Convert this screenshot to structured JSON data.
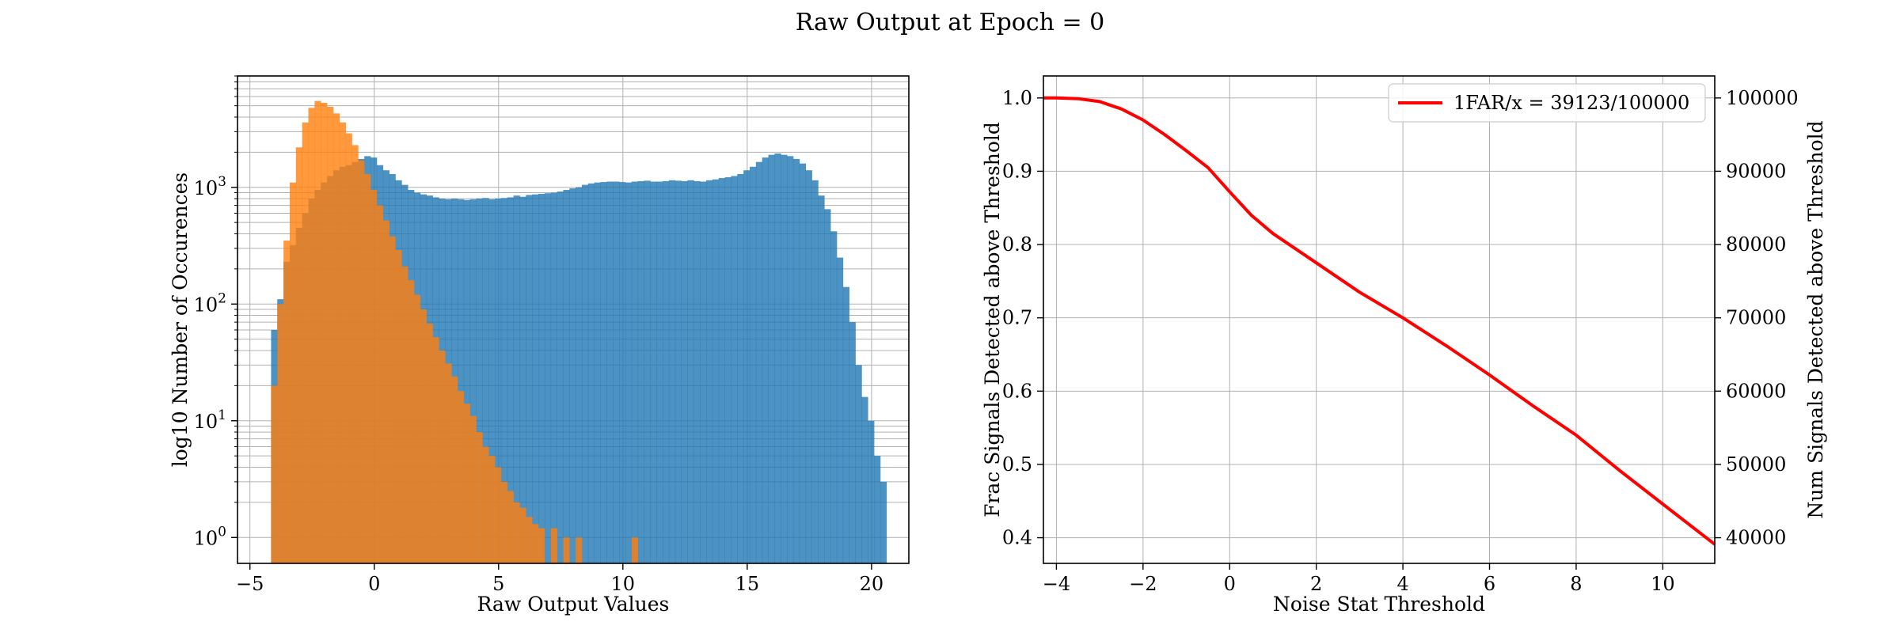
{
  "figure": {
    "suptitle": "Raw Output at Epoch = 0",
    "background": "#ffffff"
  },
  "chart_data": [
    {
      "type": "histogram",
      "xlabel": "Raw Output Values",
      "ylabel": "log10 Number of Occurences",
      "xlim": [
        -5.5,
        21.5
      ],
      "ylim": [
        0.6,
        9000
      ],
      "yscale": "log",
      "grid": true,
      "xticks": [
        -5,
        0,
        5,
        10,
        15,
        20
      ],
      "xtick_labels": [
        "−5",
        "0",
        "5",
        "10",
        "15",
        "20"
      ],
      "yticks": [
        {
          "value": 1,
          "base": "10",
          "exp": "0"
        },
        {
          "value": 10,
          "base": "10",
          "exp": "1"
        },
        {
          "value": 100,
          "base": "10",
          "exp": "2"
        },
        {
          "value": 1000,
          "base": "10",
          "exp": "3"
        }
      ],
      "series": [
        {
          "color": "#1f77b4",
          "opacity": 0.8,
          "bin_edges_start": -4.4,
          "bin_width": 0.25,
          "counts": [
            0.5,
            60,
            110,
            230,
            320,
            450,
            600,
            800,
            950,
            1100,
            1250,
            1400,
            1500,
            1550,
            1650,
            1750,
            1850,
            1800,
            1550,
            1400,
            1300,
            1150,
            1050,
            950,
            900,
            870,
            850,
            820,
            800,
            790,
            800,
            790,
            780,
            790,
            800,
            810,
            790,
            800,
            810,
            820,
            850,
            830,
            860,
            870,
            880,
            890,
            900,
            920,
            950,
            980,
            1000,
            1050,
            1080,
            1100,
            1110,
            1120,
            1120,
            1110,
            1100,
            1120,
            1130,
            1140,
            1120,
            1120,
            1130,
            1150,
            1140,
            1130,
            1150,
            1130,
            1120,
            1150,
            1170,
            1200,
            1220,
            1250,
            1300,
            1400,
            1500,
            1650,
            1800,
            1900,
            1950,
            1900,
            1850,
            1750,
            1600,
            1400,
            1150,
            850,
            650,
            420,
            250,
            140,
            70,
            30,
            16,
            10,
            5,
            3
          ]
        },
        {
          "color": "#ff7f0e",
          "opacity": 0.8,
          "bin_edges_start": -4.4,
          "bin_width": 0.25,
          "counts": [
            0.5,
            20,
            100,
            350,
            1100,
            2200,
            3600,
            4800,
            5500,
            5300,
            4900,
            4300,
            3600,
            2900,
            2300,
            1700,
            1300,
            950,
            700,
            520,
            380,
            290,
            210,
            160,
            120,
            90,
            68,
            52,
            40,
            31,
            24,
            18,
            14,
            11,
            8,
            6,
            5,
            4,
            3,
            2.5,
            2,
            1.8,
            1.5,
            1.3,
            1.2,
            0.5,
            1.2,
            0.5,
            1.0,
            0.5,
            1.0,
            0.5,
            0.5,
            0.5,
            0.5,
            0.5,
            0.5,
            0.5,
            0.5,
            1.0
          ]
        }
      ]
    },
    {
      "type": "line",
      "xlabel": "Noise Stat Threshold",
      "ylabel": "Frac Signals Detected above Threshold",
      "ylabel_right": "Num Signals Detected above Threshold",
      "xlim": [
        -4.3,
        11.2
      ],
      "ylim": [
        0.365,
        1.03
      ],
      "ylim_right": [
        36500,
        103000
      ],
      "grid": true,
      "xticks": [
        -4,
        -2,
        0,
        2,
        4,
        6,
        8,
        10
      ],
      "xtick_labels": [
        "−4",
        "−2",
        "0",
        "2",
        "4",
        "6",
        "8",
        "10"
      ],
      "yticks": [
        0.4,
        0.5,
        0.6,
        0.7,
        0.8,
        0.9,
        1.0
      ],
      "ytick_labels": [
        "0.4",
        "0.5",
        "0.6",
        "0.7",
        "0.8",
        "0.9",
        "1.0"
      ],
      "yticks_right": [
        40000,
        50000,
        60000,
        70000,
        80000,
        90000,
        100000
      ],
      "ytick_labels_right": [
        "40000",
        "50000",
        "60000",
        "70000",
        "80000",
        "90000",
        "100000"
      ],
      "legend": {
        "label": "1FAR/x = 39123/100000",
        "position": "upper right"
      },
      "series": [
        {
          "name": "1FAR/x = 39123/100000",
          "color": "#ff0000",
          "x": [
            -4.3,
            -4,
            -3.5,
            -3,
            -2.5,
            -2,
            -1.5,
            -1,
            -0.5,
            0,
            0.5,
            1,
            2,
            3,
            4,
            5,
            6,
            7,
            8,
            9,
            10,
            11.2
          ],
          "y": [
            1.0,
            1.0,
            0.999,
            0.995,
            0.985,
            0.97,
            0.95,
            0.928,
            0.905,
            0.872,
            0.84,
            0.815,
            0.775,
            0.735,
            0.7,
            0.662,
            0.622,
            0.58,
            0.54,
            0.492,
            0.446,
            0.391
          ]
        }
      ]
    }
  ]
}
